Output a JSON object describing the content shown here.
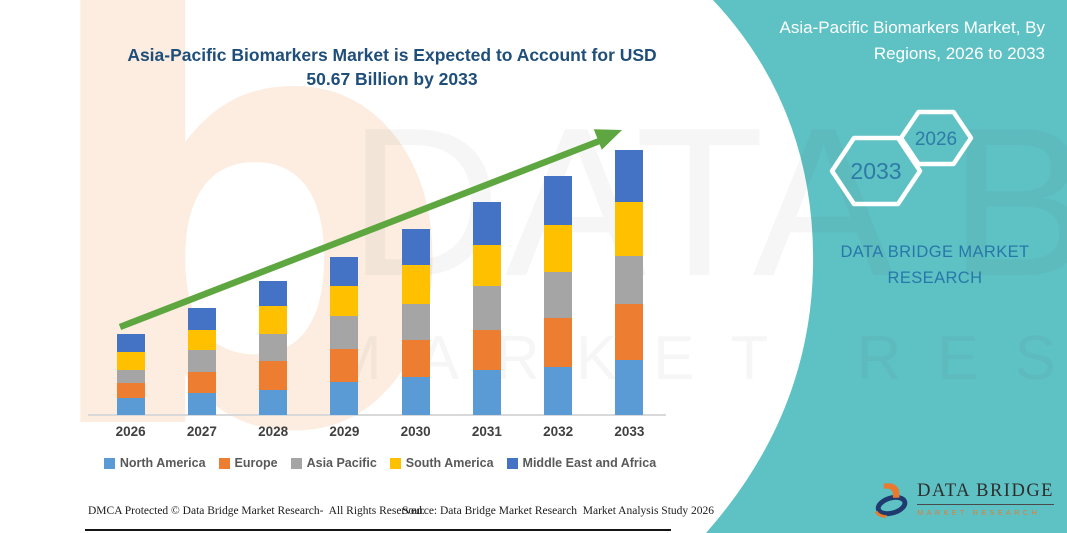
{
  "chart_data": {
    "type": "bar",
    "stacked": true,
    "title": "Asia-Pacific Biomarkers Market is Expected to Account for USD 50.67 Billion by 2033",
    "unit": "USD Billion",
    "categories": [
      "2026",
      "2027",
      "2028",
      "2029",
      "2030",
      "2031",
      "2032",
      "2033"
    ],
    "series": [
      {
        "name": "North America",
        "color": "#5B9BD5",
        "values": [
          3.2,
          4.3,
          4.8,
          6.4,
          7.3,
          8.6,
          9.1,
          10.6
        ]
      },
      {
        "name": "Europe",
        "color": "#ED7D31",
        "values": [
          2.9,
          4.0,
          5.6,
          6.2,
          7.0,
          7.6,
          9.4,
          10.7
        ]
      },
      {
        "name": "Asia Pacific",
        "color": "#A5A5A5",
        "values": [
          2.5,
          4.1,
          5.1,
          6.3,
          7.0,
          8.5,
          8.9,
          9.2
        ]
      },
      {
        "name": "South America",
        "color": "#FFC000",
        "values": [
          3.5,
          3.8,
          5.4,
          5.7,
          7.3,
          7.8,
          8.9,
          10.2
        ]
      },
      {
        "name": "Middle East and Africa",
        "color": "#4472C4",
        "values": [
          3.4,
          4.3,
          4.8,
          5.7,
          7.0,
          8.3,
          9.4,
          9.9
        ]
      }
    ],
    "estimated_totals": [
      15.5,
      20.5,
      25.7,
      30.3,
      35.6,
      40.8,
      45.7,
      50.67
    ],
    "key_value_annotation": "USD 50.67 Billion by 2033",
    "legend_position": "bottom",
    "grid": false,
    "y_axis_shown": false,
    "trend_arrow": {
      "from_year": "2026",
      "to_year": "2033",
      "color": "#5EA63F"
    }
  },
  "right_panel": {
    "title": "Asia-Pacific Biomarkers Market, By Regions, 2026 to 2033",
    "hexagon_large_label": "2033",
    "hexagon_small_label": "2026",
    "brand_text": "DATA BRIDGE MARKET RESEARCH",
    "panel_color": "#5EC1C4",
    "hexagon_label_color": "#2E7BA6",
    "logo": {
      "name_top": "DATA BRIDGE",
      "name_bottom": "MARKET RESEARCH"
    }
  },
  "watermark": {
    "letter": "b",
    "line1": "DATA BRIDGE",
    "line2": "MARKET RESEARCH"
  },
  "footer": {
    "dmca": "DMCA Protected © Data Bridge Market Research-  All Rights Reserved.",
    "source": "Source: Data Bridge Market Research  Market Analysis Study 2026"
  },
  "colors": {
    "title_blue": "#1F4E79",
    "arrow_green": "#5EA63F",
    "brand_blue": "#2778A9"
  }
}
